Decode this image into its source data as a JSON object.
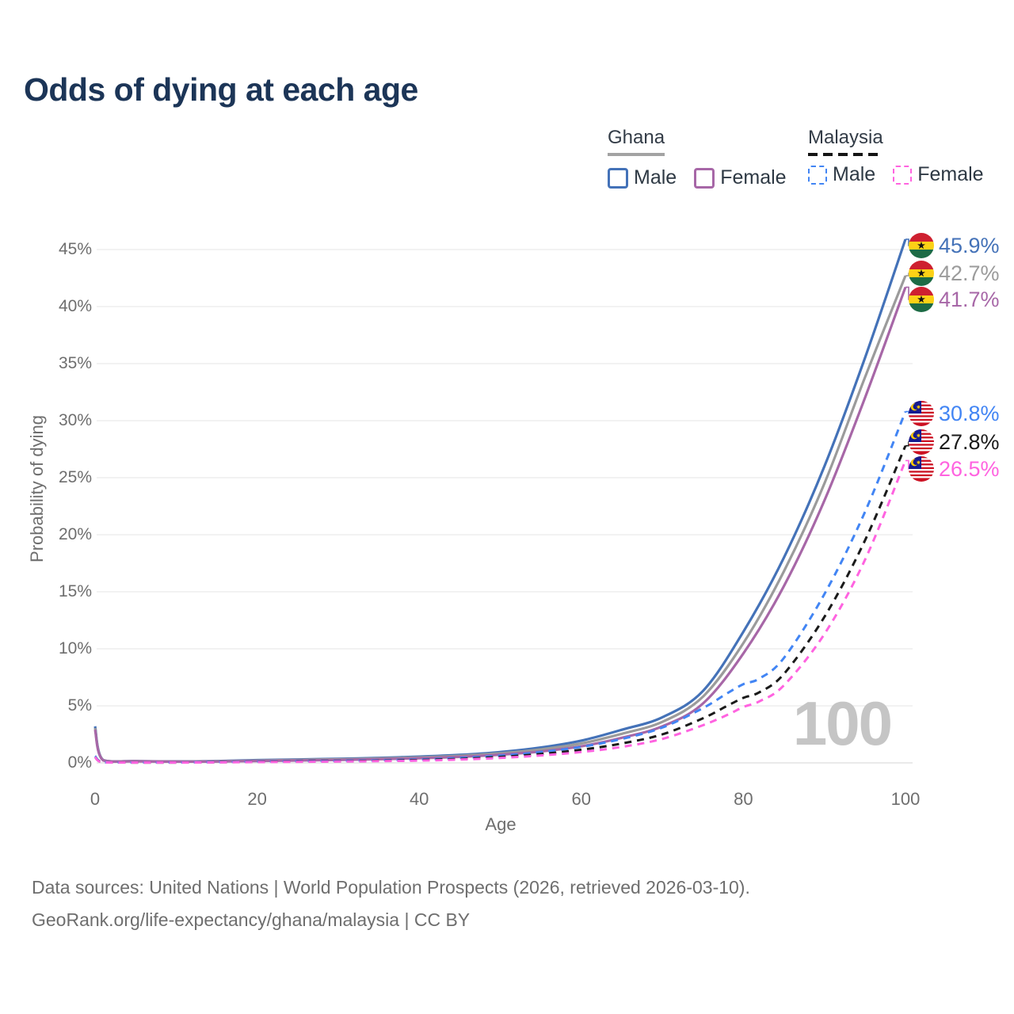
{
  "title": "Odds of dying at each age",
  "legend": {
    "ghana": {
      "label": "Ghana",
      "male": "Male",
      "female": "Female"
    },
    "malaysia": {
      "label": "Malaysia",
      "male": "Male",
      "female": "Female"
    }
  },
  "watermark": "100",
  "end_labels": {
    "ghana_male": {
      "value": "45.9%",
      "color": "#4472b8",
      "flag": "ghana"
    },
    "ghana_both": {
      "value": "42.7%",
      "color": "#9b9b9b",
      "flag": "ghana"
    },
    "ghana_female": {
      "value": "41.7%",
      "color": "#a767a7",
      "flag": "ghana"
    },
    "malaysia_male": {
      "value": "30.8%",
      "color": "#4285f4",
      "flag": "malaysia"
    },
    "malaysia_both": {
      "value": "27.8%",
      "color": "#1a1a1a",
      "flag": "malaysia"
    },
    "malaysia_female": {
      "value": "26.5%",
      "color": "#ff63e0",
      "flag": "malaysia"
    }
  },
  "footer": {
    "line1": "Data sources: United Nations | World Population Prospects (2026, retrieved 2026-03-10).",
    "line2": "GeoRank.org/life-expectancy/ghana/malaysia | CC BY"
  },
  "chart_data": {
    "type": "line",
    "title": "Odds of dying at each age",
    "xlabel": "Age",
    "ylabel": "Probability of dying",
    "xlim": [
      0,
      100
    ],
    "ylim": [
      0,
      46
    ],
    "xticks": [
      0,
      20,
      40,
      60,
      80,
      100
    ],
    "yticks": [
      0,
      5,
      10,
      15,
      20,
      25,
      30,
      35,
      40,
      45
    ],
    "ytick_suffix": "%",
    "grid": "horizontal",
    "legend_position": "top-right",
    "series": [
      {
        "name": "Ghana Male",
        "country": "Ghana",
        "sex": "Male",
        "color": "#4472b8",
        "dashed": false,
        "end_value_pct": 45.9,
        "points": [
          [
            0,
            3.2
          ],
          [
            1,
            0.25
          ],
          [
            5,
            0.16
          ],
          [
            10,
            0.13
          ],
          [
            15,
            0.16
          ],
          [
            20,
            0.24
          ],
          [
            25,
            0.3
          ],
          [
            30,
            0.36
          ],
          [
            35,
            0.44
          ],
          [
            40,
            0.55
          ],
          [
            45,
            0.7
          ],
          [
            50,
            0.95
          ],
          [
            55,
            1.35
          ],
          [
            60,
            1.95
          ],
          [
            65,
            2.9
          ],
          [
            70,
            4.0
          ],
          [
            75,
            6.3
          ],
          [
            80,
            11.5
          ],
          [
            85,
            18.0
          ],
          [
            90,
            26.0
          ],
          [
            95,
            35.5
          ],
          [
            100,
            45.9
          ]
        ]
      },
      {
        "name": "Ghana Both sexes",
        "country": "Ghana",
        "sex": "Both",
        "color": "#9b9b9b",
        "dashed": false,
        "end_value_pct": 42.7,
        "points": [
          [
            0,
            3.05
          ],
          [
            1,
            0.24
          ],
          [
            5,
            0.15
          ],
          [
            10,
            0.12
          ],
          [
            15,
            0.14
          ],
          [
            20,
            0.2
          ],
          [
            25,
            0.26
          ],
          [
            30,
            0.31
          ],
          [
            35,
            0.38
          ],
          [
            40,
            0.48
          ],
          [
            45,
            0.62
          ],
          [
            50,
            0.84
          ],
          [
            55,
            1.18
          ],
          [
            60,
            1.7
          ],
          [
            65,
            2.55
          ],
          [
            70,
            3.6
          ],
          [
            75,
            5.8
          ],
          [
            80,
            10.5
          ],
          [
            85,
            16.8
          ],
          [
            90,
            24.5
          ],
          [
            95,
            33.8
          ],
          [
            100,
            42.7
          ]
        ]
      },
      {
        "name": "Ghana Female",
        "country": "Ghana",
        "sex": "Female",
        "color": "#a767a7",
        "dashed": false,
        "end_value_pct": 41.7,
        "points": [
          [
            0,
            2.9
          ],
          [
            1,
            0.22
          ],
          [
            5,
            0.14
          ],
          [
            10,
            0.11
          ],
          [
            15,
            0.12
          ],
          [
            20,
            0.17
          ],
          [
            25,
            0.21
          ],
          [
            30,
            0.26
          ],
          [
            35,
            0.32
          ],
          [
            40,
            0.41
          ],
          [
            45,
            0.53
          ],
          [
            50,
            0.72
          ],
          [
            55,
            1.0
          ],
          [
            60,
            1.45
          ],
          [
            65,
            2.2
          ],
          [
            70,
            3.2
          ],
          [
            75,
            5.2
          ],
          [
            80,
            9.6
          ],
          [
            85,
            15.5
          ],
          [
            90,
            23.0
          ],
          [
            95,
            32.0
          ],
          [
            100,
            41.7
          ]
        ]
      },
      {
        "name": "Malaysia Male",
        "country": "Malaysia",
        "sex": "Male",
        "color": "#4285f4",
        "dashed": true,
        "end_value_pct": 30.8,
        "points": [
          [
            0,
            0.6
          ],
          [
            1,
            0.05
          ],
          [
            5,
            0.035
          ],
          [
            10,
            0.035
          ],
          [
            15,
            0.07
          ],
          [
            20,
            0.12
          ],
          [
            25,
            0.15
          ],
          [
            30,
            0.18
          ],
          [
            35,
            0.23
          ],
          [
            40,
            0.3
          ],
          [
            45,
            0.43
          ],
          [
            50,
            0.63
          ],
          [
            55,
            0.95
          ],
          [
            60,
            1.4
          ],
          [
            65,
            2.1
          ],
          [
            70,
            3.1
          ],
          [
            75,
            4.8
          ],
          [
            78,
            6.1
          ],
          [
            80,
            6.9
          ],
          [
            82,
            7.4
          ],
          [
            85,
            9.2
          ],
          [
            90,
            14.8
          ],
          [
            95,
            22.0
          ],
          [
            100,
            30.8
          ]
        ]
      },
      {
        "name": "Malaysia Both sexes",
        "country": "Malaysia",
        "sex": "Both",
        "color": "#1a1a1a",
        "dashed": true,
        "end_value_pct": 27.8,
        "points": [
          [
            0,
            0.5
          ],
          [
            1,
            0.04
          ],
          [
            5,
            0.03
          ],
          [
            10,
            0.03
          ],
          [
            15,
            0.055
          ],
          [
            20,
            0.09
          ],
          [
            25,
            0.12
          ],
          [
            30,
            0.145
          ],
          [
            35,
            0.185
          ],
          [
            40,
            0.25
          ],
          [
            45,
            0.35
          ],
          [
            50,
            0.52
          ],
          [
            55,
            0.78
          ],
          [
            60,
            1.15
          ],
          [
            65,
            1.7
          ],
          [
            70,
            2.5
          ],
          [
            75,
            3.9
          ],
          [
            78,
            5.0
          ],
          [
            80,
            5.7
          ],
          [
            82,
            6.2
          ],
          [
            85,
            7.8
          ],
          [
            90,
            12.8
          ],
          [
            95,
            19.5
          ],
          [
            100,
            27.8
          ]
        ]
      },
      {
        "name": "Malaysia Female",
        "country": "Malaysia",
        "sex": "Female",
        "color": "#ff63e0",
        "dashed": true,
        "end_value_pct": 26.5,
        "points": [
          [
            0,
            0.5
          ],
          [
            1,
            0.035
          ],
          [
            5,
            0.025
          ],
          [
            10,
            0.025
          ],
          [
            15,
            0.045
          ],
          [
            20,
            0.07
          ],
          [
            25,
            0.09
          ],
          [
            30,
            0.115
          ],
          [
            35,
            0.15
          ],
          [
            40,
            0.2
          ],
          [
            45,
            0.29
          ],
          [
            50,
            0.43
          ],
          [
            55,
            0.65
          ],
          [
            60,
            0.95
          ],
          [
            65,
            1.4
          ],
          [
            70,
            2.1
          ],
          [
            75,
            3.3
          ],
          [
            78,
            4.2
          ],
          [
            80,
            4.9
          ],
          [
            82,
            5.4
          ],
          [
            85,
            6.8
          ],
          [
            90,
            11.3
          ],
          [
            95,
            17.8
          ],
          [
            100,
            26.5
          ]
        ]
      }
    ]
  }
}
